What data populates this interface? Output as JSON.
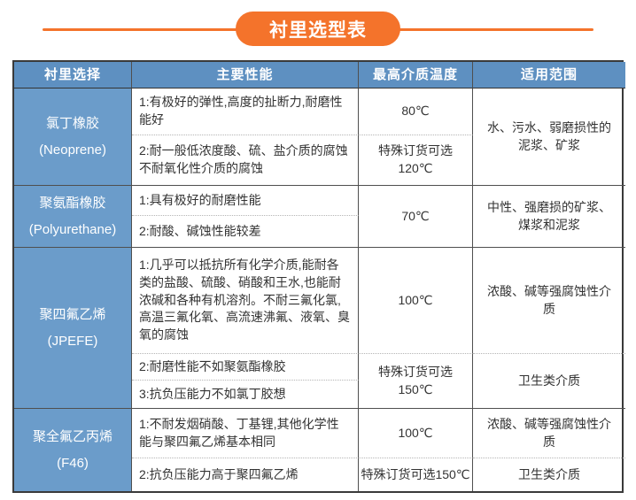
{
  "title": {
    "text": "衬里选型表"
  },
  "colors": {
    "accent": "#f4732b",
    "header_bg": "#5e90c1",
    "lining_bg": "#6b9cca"
  },
  "table": {
    "headers": [
      "衬里选择",
      "主要性能",
      "最高介质温度",
      "适用范围"
    ],
    "rows": [
      {
        "lining_cn": "氯丁橡胶",
        "lining_en": "(Neoprene)",
        "perf1": "1:有极好的弹性,高度的扯断力,耐磨性能好",
        "perf2": "2:耐一般低浓度酸、硫、盐介质的腐蚀\n不耐氧化性介质的腐蚀",
        "temp1": "80℃",
        "temp2": "特殊订货可选\n120℃",
        "range1": "水、污水、弱磨损性的泥浆、矿浆"
      },
      {
        "lining_cn": "聚氨酯橡胶",
        "lining_en": "(Polyurethane)",
        "perf1": "1:具有极好的耐磨性能",
        "perf2": "2:耐酸、碱蚀性能较差",
        "temp1": "70℃",
        "range1": "中性、强磨损的矿浆、煤浆和泥浆"
      },
      {
        "lining_cn": "聚四氟乙烯",
        "lining_en": "(JPEFE)",
        "perf1": "1:几乎可以抵抗所有化学介质,能耐各类的盐酸、硫酸、硝酸和王水,也能耐浓碱和各种有机溶剂。不耐三氟化氯,高温三氟化氧、高流速沸氟、液氧、臭氧的腐蚀",
        "perf2": "2:耐磨性能不如聚氨酯橡胶",
        "perf3": "3:抗负压能力不如氯丁胶想",
        "temp1": "100℃",
        "temp2": "特殊订货可选\n150℃",
        "range1": "浓酸、碱等强腐蚀性介质",
        "range2": "卫生类介质"
      },
      {
        "lining_cn": "聚全氟乙丙烯",
        "lining_en": "(F46)",
        "perf1": "1:不耐发烟硝酸、丁基锂,其他化学性\n能与聚四氟乙烯基本相同",
        "perf2": "2:抗负压能力高于聚四氟乙烯",
        "temp1": "100℃",
        "temp2": "特殊订货可选150℃",
        "range1": "浓酸、碱等强腐蚀性介质",
        "range2": "卫生类介质"
      }
    ]
  }
}
